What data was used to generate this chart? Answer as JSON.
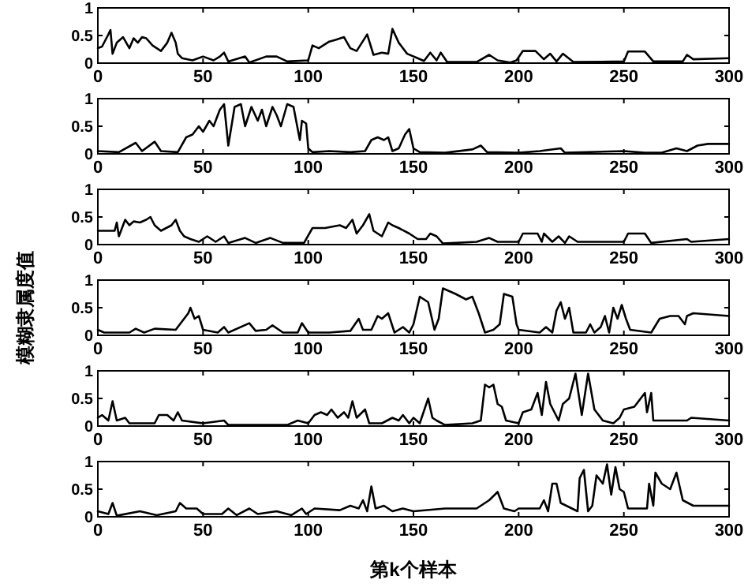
{
  "chart_data": [
    {
      "type": "line",
      "xlim": [
        0,
        300
      ],
      "ylim": [
        0,
        1
      ],
      "xticks": [
        0,
        50,
        100,
        150,
        200,
        250,
        300
      ],
      "yticks": [
        0,
        0.5,
        1
      ],
      "grid": false,
      "series": [
        {
          "color": "#000000",
          "x": [
            0,
            2,
            5,
            6,
            7,
            9,
            12,
            15,
            17,
            19,
            21,
            23,
            26,
            30,
            33,
            35,
            37,
            38,
            40,
            45,
            50,
            55,
            58,
            60,
            62,
            70,
            72,
            80,
            85,
            90,
            100,
            102,
            105,
            110,
            113,
            117,
            120,
            123,
            128,
            131,
            135,
            138,
            140,
            143,
            147,
            152,
            155,
            158,
            161,
            163,
            166,
            180,
            186,
            190,
            196,
            199,
            202,
            208,
            212,
            215,
            218,
            221,
            226,
            250,
            252,
            260,
            264,
            278,
            280,
            283,
            300
          ],
          "values": [
            0.27,
            0.3,
            0.52,
            0.6,
            0.17,
            0.37,
            0.47,
            0.27,
            0.45,
            0.37,
            0.47,
            0.45,
            0.32,
            0.22,
            0.37,
            0.55,
            0.37,
            0.17,
            0.09,
            0.05,
            0.12,
            0.05,
            0.12,
            0.19,
            0.03,
            0.12,
            0.01,
            0.12,
            0.12,
            0.03,
            0.05,
            0.32,
            0.27,
            0.39,
            0.42,
            0.47,
            0.27,
            0.22,
            0.52,
            0.15,
            0.19,
            0.17,
            0.62,
            0.37,
            0.17,
            0.09,
            0.04,
            0.19,
            0.05,
            0.19,
            0.02,
            0.02,
            0.15,
            0.05,
            0.01,
            0.05,
            0.22,
            0.22,
            0.07,
            0.17,
            0.03,
            0.17,
            0.02,
            0.03,
            0.21,
            0.21,
            0.03,
            0.03,
            0.15,
            0.07,
            0.09
          ]
        }
      ]
    },
    {
      "type": "line",
      "xlim": [
        0,
        300
      ],
      "ylim": [
        0,
        1
      ],
      "xticks": [
        0,
        50,
        100,
        150,
        200,
        250,
        300
      ],
      "yticks": [
        0,
        0.5,
        1
      ],
      "grid": false,
      "series": [
        {
          "color": "#000000",
          "x": [
            0,
            10,
            18,
            21,
            27,
            30,
            38,
            42,
            45,
            48,
            50,
            53,
            55,
            58,
            60,
            62,
            65,
            68,
            70,
            73,
            76,
            78,
            80,
            83,
            85,
            87,
            90,
            93,
            96,
            97,
            99,
            100,
            102,
            110,
            120,
            127,
            130,
            133,
            136,
            138,
            140,
            143,
            146,
            148,
            150,
            153,
            165,
            178,
            182,
            185,
            200,
            210,
            220,
            222,
            250,
            260,
            268,
            275,
            280,
            285,
            290,
            300
          ],
          "values": [
            0.05,
            0.03,
            0.2,
            0.05,
            0.22,
            0.05,
            0.03,
            0.3,
            0.35,
            0.5,
            0.4,
            0.6,
            0.5,
            0.8,
            0.9,
            0.15,
            0.85,
            0.9,
            0.5,
            0.85,
            0.6,
            0.8,
            0.5,
            0.85,
            0.7,
            0.5,
            0.9,
            0.85,
            0.25,
            0.6,
            0.55,
            0.1,
            0.03,
            0.05,
            0.03,
            0.05,
            0.25,
            0.3,
            0.25,
            0.3,
            0.05,
            0.1,
            0.35,
            0.45,
            0.1,
            0.03,
            0.02,
            0.08,
            0.15,
            0.03,
            0.02,
            0.05,
            0.1,
            0.02,
            0.05,
            0.02,
            0.02,
            0.1,
            0.05,
            0.15,
            0.18,
            0.18
          ]
        }
      ]
    },
    {
      "type": "line",
      "xlim": [
        0,
        300
      ],
      "ylim": [
        0,
        1
      ],
      "xticks": [
        0,
        50,
        100,
        150,
        200,
        250,
        300
      ],
      "yticks": [
        0,
        0.5,
        1
      ],
      "grid": false,
      "series": [
        {
          "color": "#000000",
          "x": [
            0,
            8,
            9,
            10,
            13,
            15,
            17,
            20,
            23,
            25,
            27,
            30,
            35,
            37,
            39,
            41,
            44,
            48,
            52,
            56,
            60,
            62,
            70,
            75,
            82,
            88,
            98,
            102,
            108,
            115,
            118,
            121,
            123,
            126,
            129,
            131,
            135,
            138,
            140,
            143,
            148,
            152,
            156,
            158,
            161,
            164,
            180,
            186,
            190,
            200,
            202,
            209,
            211,
            212,
            216,
            219,
            222,
            224,
            228,
            250,
            252,
            260,
            263,
            280,
            282,
            300
          ],
          "values": [
            0.25,
            0.25,
            0.4,
            0.15,
            0.45,
            0.35,
            0.42,
            0.4,
            0.45,
            0.5,
            0.35,
            0.25,
            0.35,
            0.45,
            0.25,
            0.15,
            0.1,
            0.05,
            0.15,
            0.05,
            0.15,
            0.03,
            0.12,
            0.03,
            0.12,
            0.03,
            0.03,
            0.3,
            0.3,
            0.35,
            0.3,
            0.45,
            0.2,
            0.35,
            0.55,
            0.25,
            0.15,
            0.4,
            0.35,
            0.3,
            0.2,
            0.1,
            0.1,
            0.2,
            0.15,
            0.02,
            0.05,
            0.12,
            0.05,
            0.05,
            0.2,
            0.2,
            0.05,
            0.2,
            0.05,
            0.15,
            0.03,
            0.15,
            0.05,
            0.05,
            0.2,
            0.2,
            0.03,
            0.1,
            0.05,
            0.1
          ]
        }
      ]
    },
    {
      "type": "line",
      "ylabel": "模糊隶属度值",
      "xlim": [
        0,
        300
      ],
      "ylim": [
        0,
        1
      ],
      "xticks": [
        0,
        50,
        100,
        150,
        200,
        250,
        300
      ],
      "yticks": [
        0,
        0.5,
        1
      ],
      "grid": false,
      "series": [
        {
          "color": "#000000",
          "x": [
            0,
            3,
            15,
            18,
            22,
            27,
            37,
            40,
            43,
            44,
            46,
            48,
            50,
            57,
            60,
            62,
            72,
            75,
            80,
            83,
            88,
            95,
            97,
            100,
            110,
            120,
            124,
            126,
            130,
            133,
            135,
            138,
            141,
            145,
            148,
            150,
            153,
            155,
            157,
            160,
            162,
            164,
            167,
            170,
            175,
            178,
            181,
            184,
            188,
            191,
            193,
            197,
            199,
            200,
            210,
            213,
            216,
            218,
            220,
            222,
            224,
            226,
            232,
            234,
            236,
            239,
            241,
            243,
            245,
            247,
            249,
            251,
            253,
            263,
            267,
            272,
            276,
            279,
            280,
            283,
            300
          ],
          "values": [
            0.1,
            0.05,
            0.05,
            0.12,
            0.05,
            0.12,
            0.1,
            0.25,
            0.4,
            0.5,
            0.3,
            0.35,
            0.1,
            0.05,
            0.15,
            0.05,
            0.22,
            0.08,
            0.1,
            0.18,
            0.05,
            0.05,
            0.22,
            0.05,
            0.05,
            0.08,
            0.3,
            0.1,
            0.1,
            0.35,
            0.3,
            0.4,
            0.05,
            0.15,
            0.05,
            0.2,
            0.7,
            0.65,
            0.6,
            0.1,
            0.3,
            0.85,
            0.8,
            0.75,
            0.65,
            0.7,
            0.4,
            0.05,
            0.1,
            0.2,
            0.75,
            0.7,
            0.2,
            0.1,
            0.05,
            0.15,
            0.05,
            0.45,
            0.6,
            0.3,
            0.5,
            0.05,
            0.05,
            0.2,
            0.05,
            0.15,
            0.35,
            0.05,
            0.5,
            0.3,
            0.55,
            0.3,
            0.1,
            0.05,
            0.3,
            0.35,
            0.35,
            0.2,
            0.35,
            0.4,
            0.35
          ]
        }
      ]
    },
    {
      "type": "line",
      "xlim": [
        0,
        300
      ],
      "ylim": [
        0,
        1
      ],
      "xticks": [
        0,
        50,
        100,
        150,
        200,
        250,
        300
      ],
      "yticks": [
        0,
        0.5,
        1
      ],
      "grid": false,
      "series": [
        {
          "color": "#000000",
          "x": [
            0,
            2,
            5,
            7,
            9,
            13,
            15,
            27,
            29,
            33,
            36,
            38,
            40,
            50,
            60,
            62,
            90,
            95,
            100,
            103,
            106,
            109,
            111,
            114,
            117,
            119,
            121,
            123,
            127,
            129,
            135,
            140,
            143,
            145,
            148,
            150,
            153,
            157,
            159,
            161,
            165,
            178,
            182,
            184,
            186,
            188,
            190,
            192,
            194,
            200,
            202,
            206,
            209,
            211,
            213,
            215,
            219,
            221,
            224,
            227,
            230,
            233,
            236,
            240,
            245,
            248,
            250,
            255,
            258,
            260,
            261,
            263,
            264,
            280,
            282,
            300
          ],
          "values": [
            0.15,
            0.2,
            0.1,
            0.45,
            0.1,
            0.15,
            0.05,
            0.05,
            0.2,
            0.2,
            0.1,
            0.25,
            0.1,
            0.05,
            0.1,
            0.02,
            0.02,
            0.1,
            0.05,
            0.2,
            0.25,
            0.2,
            0.3,
            0.15,
            0.25,
            0.15,
            0.45,
            0.15,
            0.3,
            0.05,
            0.05,
            0.15,
            0.1,
            0.2,
            0.05,
            0.15,
            0.05,
            0.5,
            0.15,
            0.1,
            0.02,
            0.05,
            0.1,
            0.75,
            0.7,
            0.75,
            0.4,
            0.35,
            0.1,
            0.05,
            0.25,
            0.3,
            0.6,
            0.2,
            0.8,
            0.4,
            0.1,
            0.4,
            0.5,
            0.95,
            0.2,
            0.95,
            0.3,
            0.1,
            0.05,
            0.15,
            0.3,
            0.35,
            0.5,
            0.6,
            0.25,
            0.6,
            0.1,
            0.1,
            0.15,
            0.1
          ]
        }
      ]
    },
    {
      "type": "line",
      "xlabel": "第k个样本",
      "xlim": [
        0,
        300
      ],
      "ylim": [
        0,
        1
      ],
      "xticks": [
        0,
        50,
        100,
        150,
        200,
        250,
        300
      ],
      "yticks": [
        0,
        0.5,
        1
      ],
      "grid": false,
      "series": [
        {
          "color": "#000000",
          "x": [
            0,
            5,
            7,
            9,
            20,
            28,
            37,
            39,
            42,
            47,
            50,
            59,
            62,
            66,
            72,
            76,
            85,
            92,
            97,
            99,
            103,
            115,
            120,
            124,
            126,
            128,
            130,
            132,
            136,
            140,
            145,
            150,
            165,
            180,
            186,
            190,
            193,
            198,
            200,
            210,
            212,
            214,
            216,
            218,
            220,
            228,
            229,
            231,
            233,
            235,
            237,
            240,
            242,
            244,
            246,
            248,
            250,
            252,
            261,
            262,
            264,
            265,
            268,
            272,
            275,
            278,
            283,
            300
          ],
          "values": [
            0.1,
            0.05,
            0.25,
            0.02,
            0.1,
            0.03,
            0.1,
            0.25,
            0.15,
            0.15,
            0.05,
            0.05,
            0.15,
            0.03,
            0.15,
            0.05,
            0.1,
            0.03,
            0.15,
            0.05,
            0.15,
            0.12,
            0.2,
            0.15,
            0.3,
            0.1,
            0.55,
            0.15,
            0.2,
            0.1,
            0.15,
            0.1,
            0.15,
            0.15,
            0.3,
            0.45,
            0.15,
            0.1,
            0.15,
            0.15,
            0.3,
            0.1,
            0.6,
            0.6,
            0.25,
            0.1,
            0.7,
            0.85,
            0.1,
            0.2,
            0.75,
            0.6,
            0.95,
            0.4,
            0.9,
            0.5,
            0.45,
            0.15,
            0.15,
            0.6,
            0.2,
            0.8,
            0.6,
            0.5,
            0.8,
            0.3,
            0.2,
            0.2
          ]
        }
      ]
    }
  ]
}
